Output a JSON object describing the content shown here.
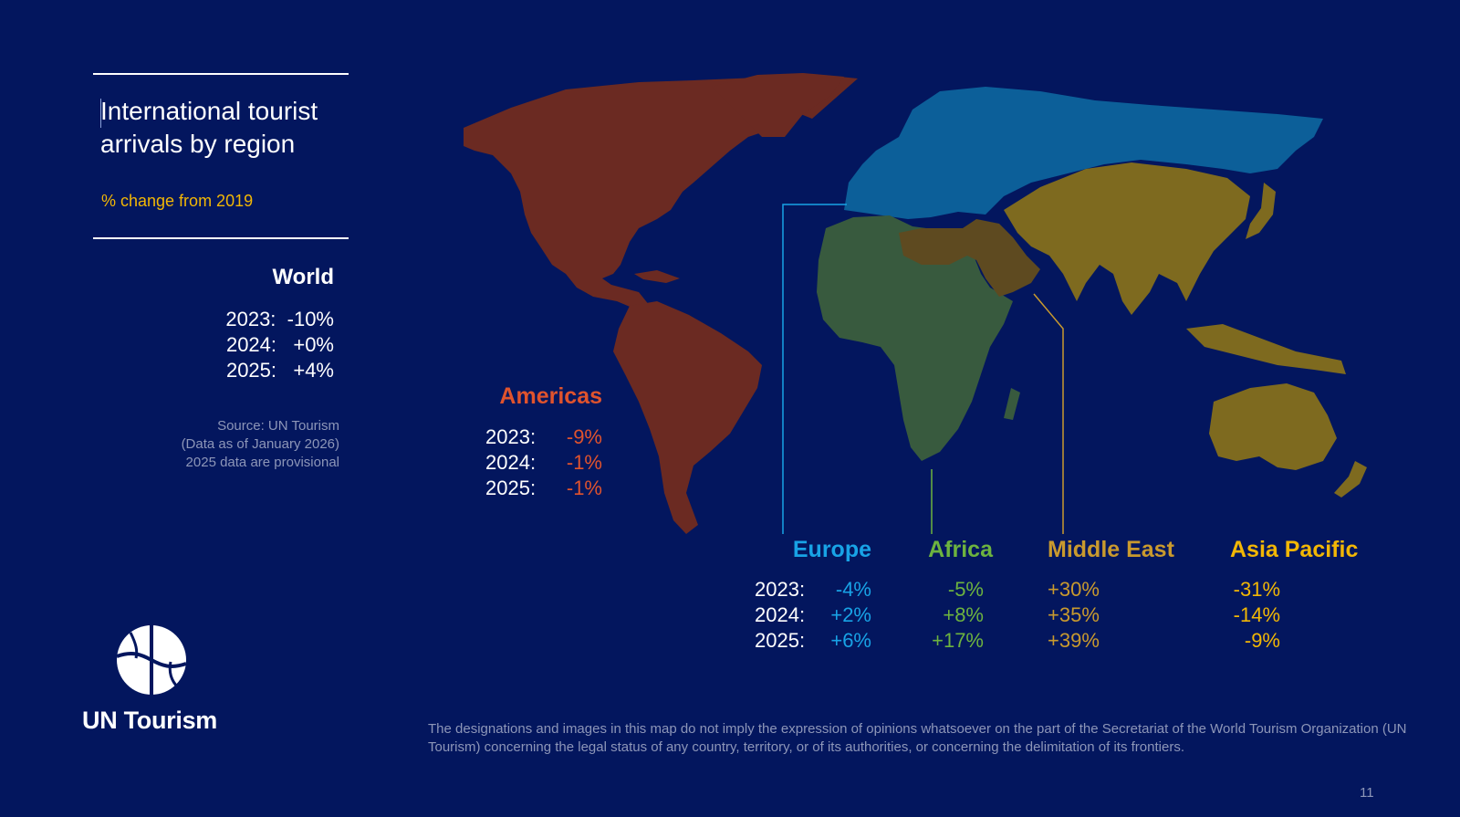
{
  "title": "International tourist arrivals by region",
  "subtitle": "% change from 2019",
  "world": {
    "name": "World",
    "rows": [
      "2023:  -10%",
      "2024:   +0%",
      "2025:   +4%"
    ]
  },
  "source": [
    "Source: UN Tourism",
    "(Data as of January 2026)",
    "2025 data are provisional"
  ],
  "regions": {
    "americas": {
      "name": "Americas",
      "years": [
        "2023:",
        "2024:",
        "2025:"
      ],
      "values": [
        "-9%",
        "-1%",
        "-1%"
      ],
      "color": "#e0532d",
      "map_color": "#6b2a22"
    },
    "europe": {
      "name": "Europe",
      "years": [
        "2023:",
        "2024:",
        "2025:"
      ],
      "values": [
        "-4%",
        "+2%",
        "+6%"
      ],
      "color": "#18a3e6",
      "map_color": "#0c5f99"
    },
    "africa": {
      "name": "Africa",
      "values": [
        "-5%",
        "+8%",
        "+17%"
      ],
      "color": "#6db33f",
      "map_color": "#385a3e"
    },
    "middle_east": {
      "name": "Middle East",
      "values": [
        "+30%",
        "+35%",
        "+39%"
      ],
      "color": "#c99a2e",
      "map_color": "#5e4a20"
    },
    "asia_pacific": {
      "name": "Asia Pacific",
      "values": [
        "-31%",
        "-14%",
        "-9%"
      ],
      "color": "#f2b705",
      "map_color": "#7e6a1f"
    }
  },
  "logo": {
    "name": "UN Tourism",
    "icon": "un-tourism-globe-icon"
  },
  "disclaimer": "The designations and images in this map do not imply the expression of opinions whatsoever on the part of the Secretariat of the World Tourism Organization (UN Tourism) concerning the legal status of any country, territory, or of its authorities, or concerning the delimitation of its frontiers.",
  "page_number": "11",
  "background": "#03165e"
}
